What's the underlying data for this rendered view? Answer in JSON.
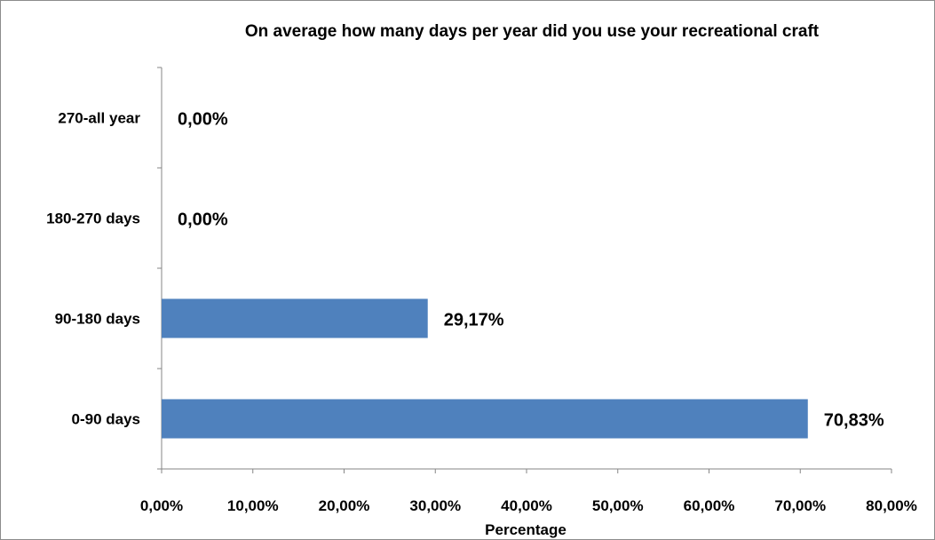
{
  "chart_data": {
    "type": "bar",
    "orientation": "horizontal",
    "title": "On average how many days per year did you use your recreational craft",
    "xlabel": "Percentage",
    "ylabel": "",
    "categories": [
      "0-90 days",
      "90-180 days",
      "180-270 days",
      "270-all year"
    ],
    "values": [
      70.83,
      29.17,
      0.0,
      0.0
    ],
    "value_labels": [
      "70,83%",
      "29,17%",
      "0,00%",
      "0,00%"
    ],
    "xlim": [
      0,
      80
    ],
    "x_ticks": [
      0,
      10,
      20,
      30,
      40,
      50,
      60,
      70,
      80
    ],
    "x_tick_labels": [
      "0,00%",
      "10,00%",
      "20,00%",
      "30,00%",
      "40,00%",
      "50,00%",
      "60,00%",
      "70,00%",
      "80,00%"
    ],
    "grid": false,
    "legend": "none",
    "bar_color": "#4f81bd"
  }
}
